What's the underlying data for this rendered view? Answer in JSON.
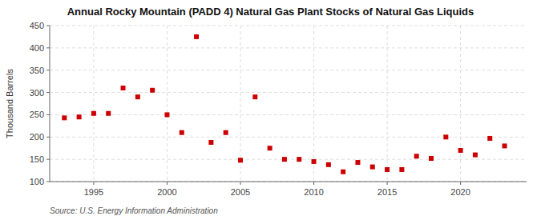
{
  "chart_data": {
    "type": "scatter",
    "title": "Annual Rocky Mountain (PADD 4) Natural Gas Plant Stocks of Natural Gas Liquids",
    "ylabel": "Thousand Barrels",
    "source": "Source: U.S. Energy Information Administration",
    "x": [
      1993,
      1994,
      1995,
      1996,
      1997,
      1998,
      1999,
      2000,
      2001,
      2002,
      2003,
      2004,
      2005,
      2006,
      2007,
      2008,
      2009,
      2010,
      2011,
      2012,
      2013,
      2014,
      2015,
      2016,
      2017,
      2018,
      2019,
      2020,
      2021,
      2022,
      2023
    ],
    "values": [
      243,
      245,
      253,
      253,
      310,
      290,
      305,
      250,
      210,
      425,
      188,
      210,
      148,
      290,
      175,
      150,
      150,
      145,
      138,
      122,
      143,
      133,
      127,
      127,
      157,
      152,
      200,
      170,
      160,
      197,
      180
    ],
    "color": "#cc0000",
    "marker": "square",
    "xlim": [
      1992,
      2024.5
    ],
    "ylim": [
      100,
      450
    ],
    "xticks": [
      1995,
      2000,
      2005,
      2010,
      2015,
      2020
    ],
    "yticks": [
      100,
      150,
      200,
      250,
      300,
      350,
      400,
      450
    ],
    "grid": true
  }
}
